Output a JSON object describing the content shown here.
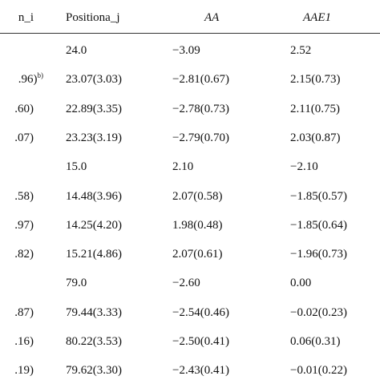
{
  "table": {
    "header": [
      "n_i",
      "Positiona_j",
      "AA",
      "AAE1"
    ],
    "rows": [
      [
        null,
        "24.0",
        "−3.09",
        "2.52"
      ],
      [
        {
          "text": ".96)",
          "sup": "b)"
        },
        "23.07(3.03)",
        "−2.81(0.67)",
        "2.15(0.73)"
      ],
      [
        ".60)",
        "22.89(3.35)",
        "−2.78(0.73)",
        "2.11(0.75)"
      ],
      [
        ".07)",
        "23.23(3.19)",
        "−2.79(0.70)",
        "2.03(0.87)"
      ],
      [
        null,
        "15.0",
        "2.10",
        "−2.10"
      ],
      [
        ".58)",
        "14.48(3.96)",
        "2.07(0.58)",
        "−1.85(0.57)"
      ],
      [
        ".97)",
        "14.25(4.20)",
        "1.98(0.48)",
        "−1.85(0.64)"
      ],
      [
        ".82)",
        "15.21(4.86)",
        "2.07(0.61)",
        "−1.96(0.73)"
      ],
      [
        null,
        "79.0",
        "−2.60",
        "0.00"
      ],
      [
        ".87)",
        "79.44(3.33)",
        "−2.54(0.46)",
        "−0.02(0.23)"
      ],
      [
        ".16)",
        "80.22(3.53)",
        "−2.50(0.41)",
        "0.06(0.31)"
      ],
      [
        ".19)",
        "79.62(3.30)",
        "−2.43(0.41)",
        "−0.01(0.22)"
      ]
    ]
  }
}
